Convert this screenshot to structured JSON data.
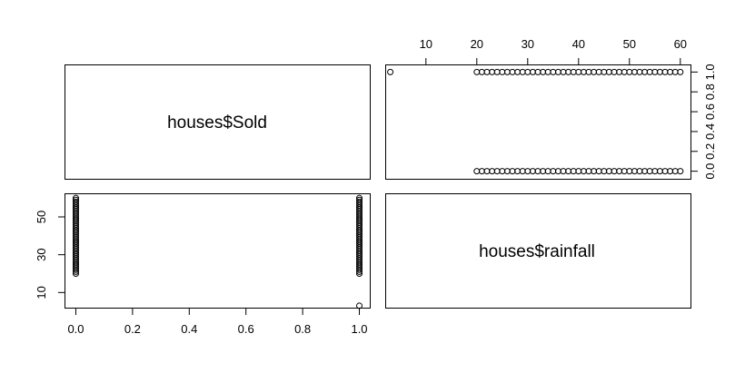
{
  "chart_data": {
    "type": "scatter",
    "layout": "pairs-matrix-2x2",
    "variables": [
      "houses$Sold",
      "houses$rainfall"
    ],
    "panels": [
      {
        "position": "top-left",
        "kind": "label",
        "text": "houses$Sold"
      },
      {
        "position": "top-right",
        "kind": "scatter",
        "x_variable": "houses$rainfall",
        "y_variable": "houses$Sold",
        "xlim": [
          2,
          62
        ],
        "ylim": [
          -0.04,
          1.04
        ],
        "x_ticks": [
          "10",
          "20",
          "30",
          "40",
          "50",
          "60"
        ],
        "x_axis_side": "top",
        "y_ticks": [
          "0.0",
          "0.2",
          "0.4",
          "0.6",
          "0.8",
          "1.0"
        ],
        "y_axis_side": "right",
        "points": []
      },
      {
        "position": "bottom-left",
        "kind": "scatter",
        "x_variable": "houses$Sold",
        "y_variable": "houses$rainfall",
        "xlim": [
          -0.04,
          1.04
        ],
        "ylim": [
          2,
          62
        ],
        "x_ticks": [
          "0.0",
          "0.2",
          "0.4",
          "0.6",
          "0.8",
          "1.0"
        ],
        "x_axis_side": "bottom",
        "y_ticks": [
          "10",
          "30",
          "50"
        ],
        "y_axis_side": "left",
        "points": []
      },
      {
        "position": "bottom-right",
        "kind": "label",
        "text": "houses$rainfall"
      }
    ],
    "observations": {
      "sold": [
        1,
        0,
        0,
        0,
        0,
        0,
        0,
        0,
        0,
        0,
        0,
        0,
        0,
        0,
        0,
        0,
        0,
        0,
        0,
        0,
        0,
        0,
        0,
        0,
        0,
        0,
        0,
        0,
        0,
        0,
        0,
        0,
        0,
        0,
        0,
        0,
        0,
        0,
        0,
        0,
        0,
        0,
        1,
        1,
        1,
        1,
        1,
        1,
        1,
        1,
        1,
        1,
        1,
        1,
        1,
        1,
        1,
        1,
        1,
        1,
        1,
        1,
        1,
        1,
        1,
        1,
        1,
        1,
        1,
        1,
        1,
        1,
        1,
        1,
        1,
        1,
        1,
        1,
        1,
        1,
        1,
        1,
        1
      ],
      "rainfall": [
        3,
        20,
        21,
        22,
        23,
        24,
        25,
        26,
        27,
        28,
        29,
        30,
        31,
        32,
        33,
        34,
        35,
        36,
        37,
        38,
        39,
        40,
        41,
        42,
        43,
        44,
        45,
        46,
        47,
        48,
        49,
        50,
        51,
        52,
        53,
        54,
        55,
        56,
        57,
        58,
        59,
        60,
        20,
        21,
        22,
        23,
        24,
        25,
        26,
        27,
        28,
        29,
        30,
        31,
        32,
        33,
        34,
        35,
        36,
        37,
        38,
        39,
        40,
        41,
        42,
        43,
        44,
        45,
        46,
        47,
        48,
        49,
        50,
        51,
        52,
        53,
        54,
        55,
        56,
        57,
        58,
        59,
        60
      ]
    }
  }
}
